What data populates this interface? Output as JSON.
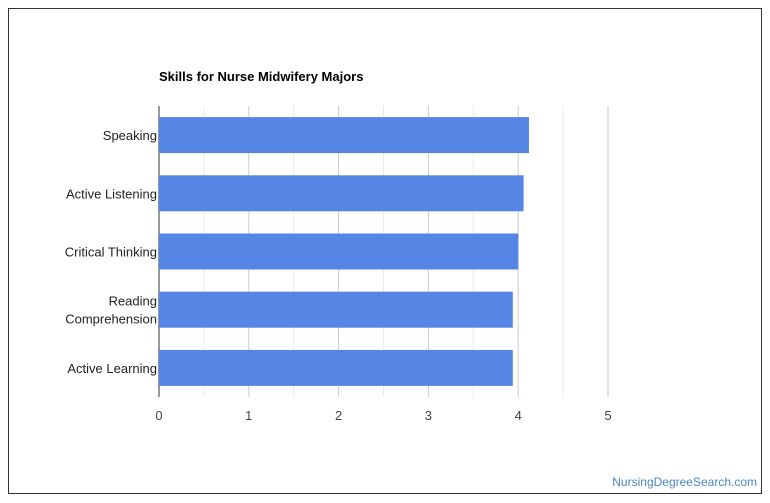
{
  "chart_data": {
    "type": "bar",
    "orientation": "horizontal",
    "title": "Skills for Nurse Midwifery Majors",
    "categories": [
      "Speaking",
      "Active Listening",
      "Critical Thinking",
      "Reading Comprehension",
      "Active Learning"
    ],
    "values": [
      4.12,
      4.06,
      4.0,
      3.94,
      3.94
    ],
    "xlim": [
      0,
      5
    ],
    "xticks": [
      "0",
      "1",
      "2",
      "3",
      "4",
      "5"
    ],
    "grid": true,
    "bar_color": "#5586e5"
  },
  "footer": {
    "credit": "NursingDegreeSearch.com"
  }
}
